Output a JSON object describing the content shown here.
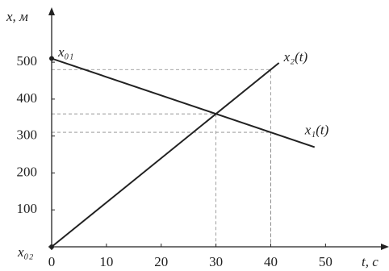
{
  "chart_data": {
    "type": "line",
    "y_label": "x, м",
    "x_label": "t, с",
    "annotations": [
      "x₀₁",
      "x₀₂"
    ],
    "series": [
      {
        "name": "x₁(t)",
        "color": "#222222",
        "x": [
          0,
          48
        ],
        "values": [
          510,
          270
        ]
      },
      {
        "name": "x₂(t)",
        "color": "#222222",
        "x": [
          0,
          41.5
        ],
        "values": [
          0,
          498
        ]
      }
    ],
    "guides": {
      "x": [
        40,
        30,
        40
      ],
      "y": [
        480,
        360,
        310
      ]
    },
    "xlim": [
      0,
      61
    ],
    "ylim": [
      0,
      640
    ],
    "xticks": [
      0,
      10,
      20,
      30,
      40,
      50
    ],
    "yticks": [
      100,
      200,
      300,
      400,
      500
    ]
  }
}
